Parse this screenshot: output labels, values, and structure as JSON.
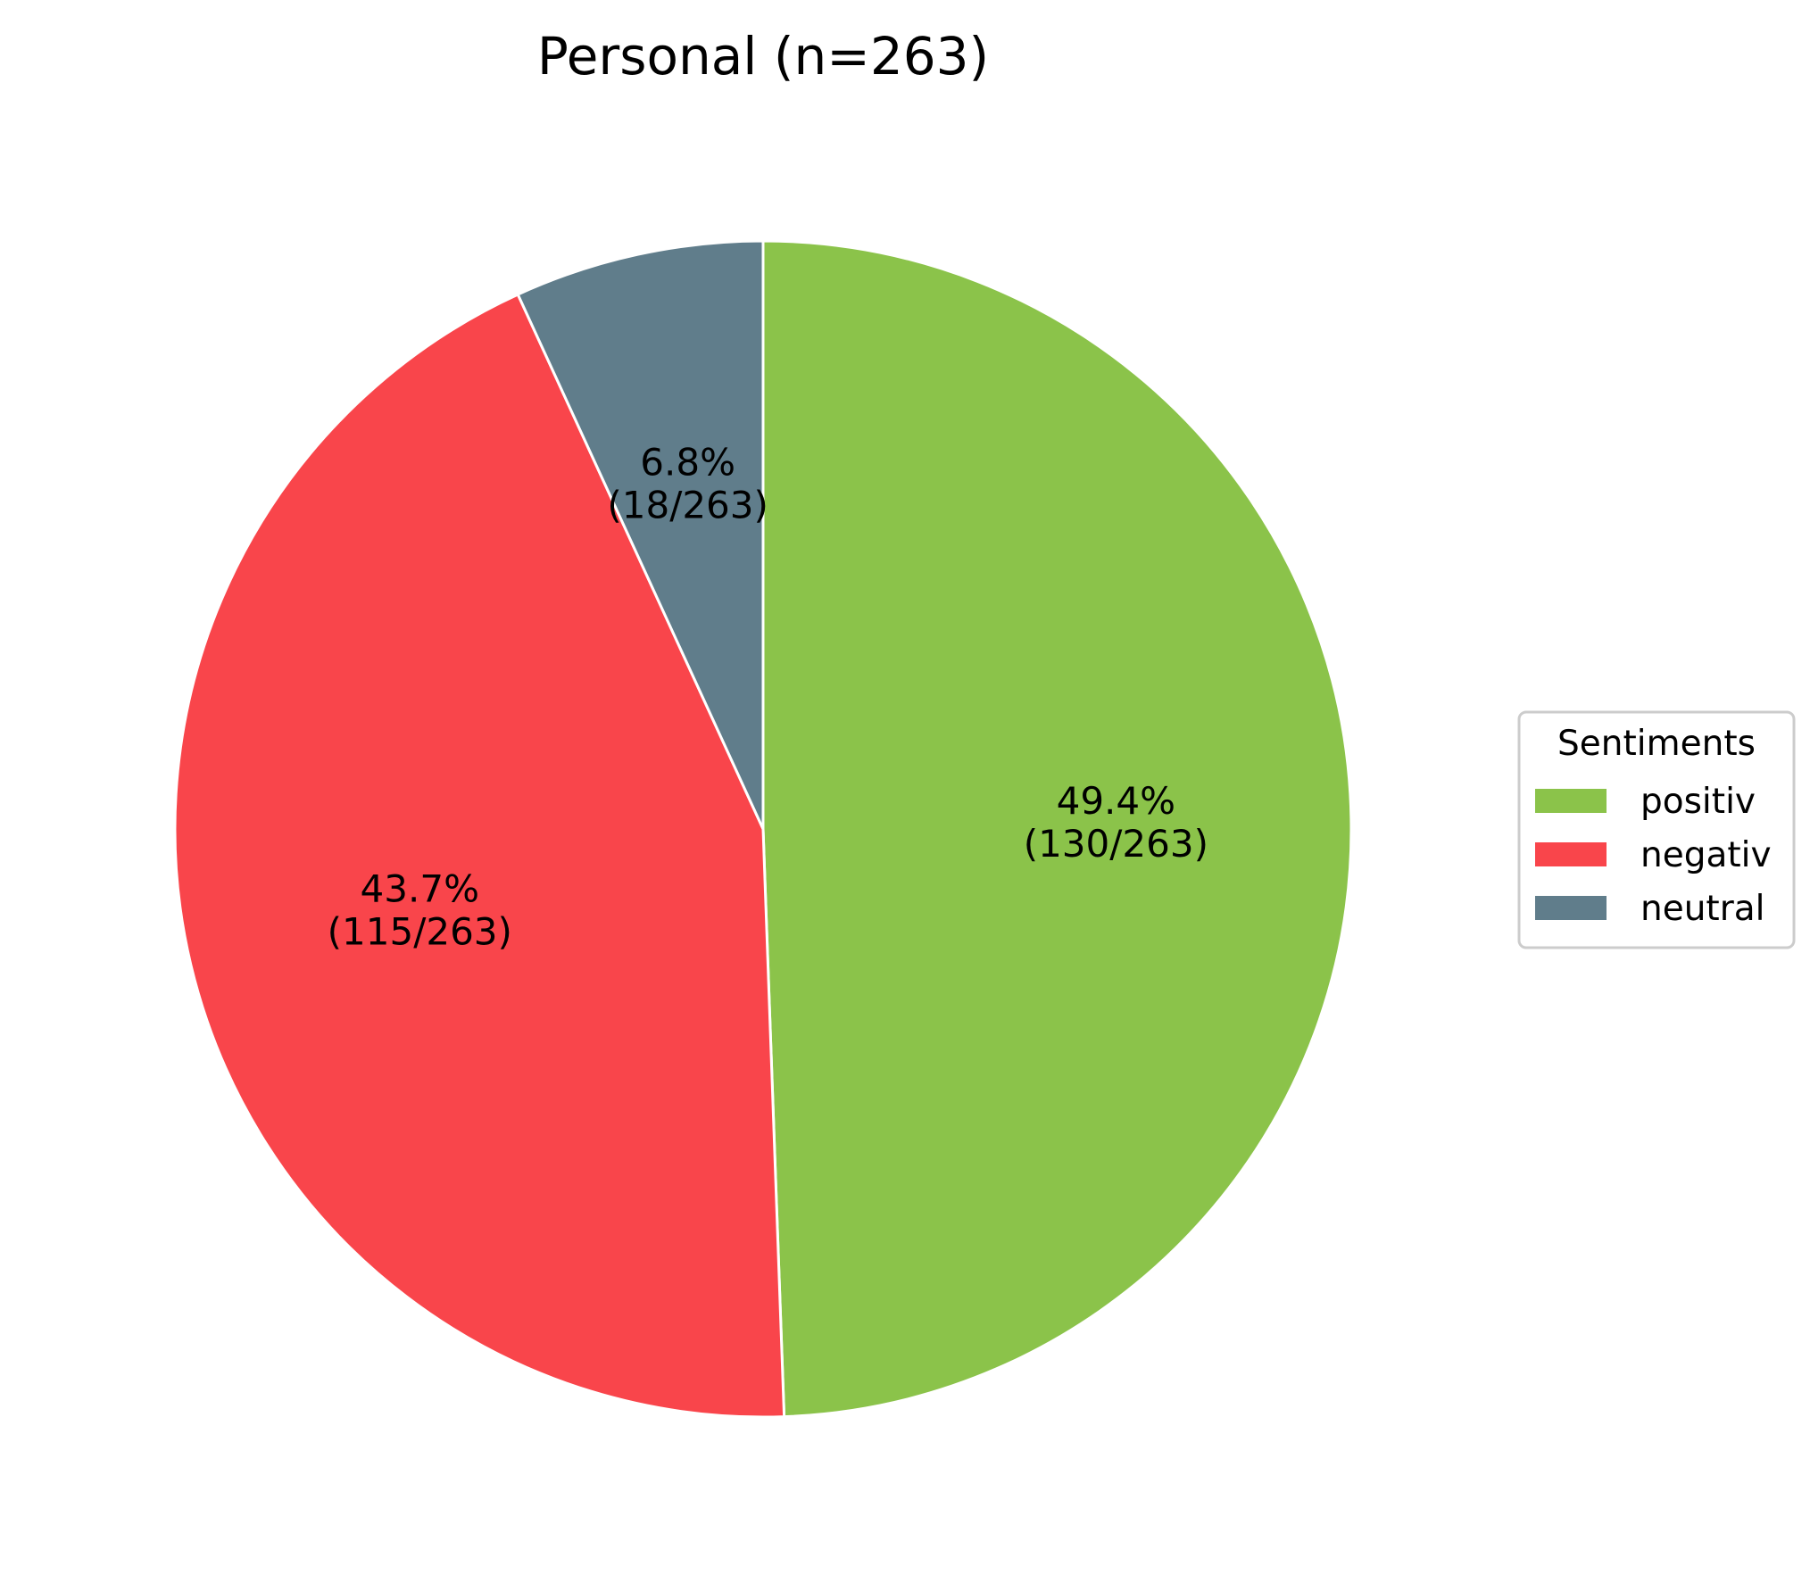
{
  "chart_data": {
    "type": "pie",
    "title": "Personal (n=263)",
    "total": 263,
    "start_angle_deg": 90,
    "direction": "clockwise",
    "slices": [
      {
        "name": "positiv",
        "value": 130,
        "percent": 49.4,
        "label_pct": "49.4%",
        "label_count": "(130/263)",
        "color": "#8bc34a"
      },
      {
        "name": "negativ",
        "value": 115,
        "percent": 43.7,
        "label_pct": "43.7%",
        "label_count": "(115/263)",
        "color": "#f9454b"
      },
      {
        "name": "neutral",
        "value": 18,
        "percent": 6.8,
        "label_pct": "6.8%",
        "label_count": "(18/263)",
        "color": "#607d8b"
      }
    ],
    "legend": {
      "title": "Sentiments",
      "placement": "center-right",
      "order": [
        "positiv",
        "negativ",
        "neutral"
      ]
    },
    "wedge_edge_color": "#ffffff"
  }
}
